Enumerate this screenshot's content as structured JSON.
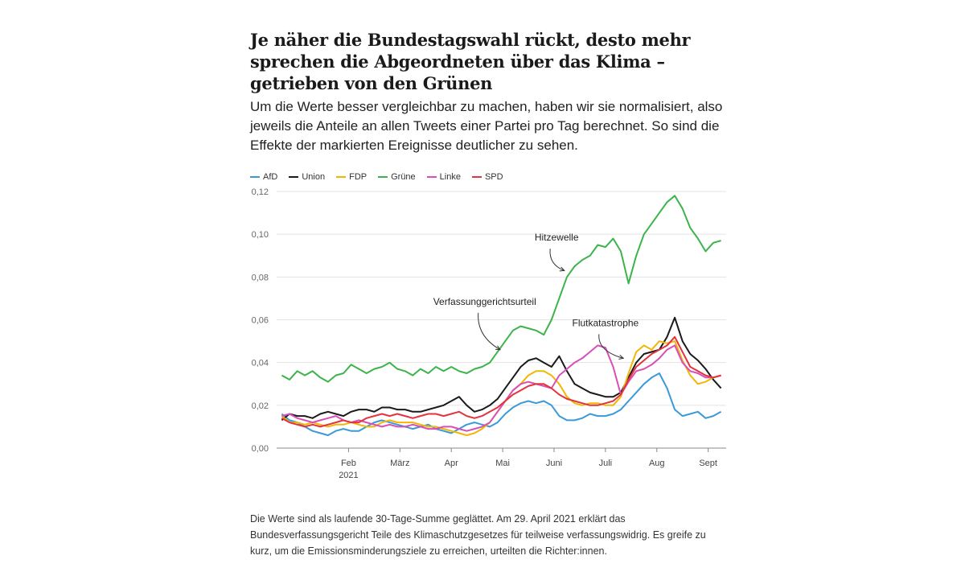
{
  "title": "Je näher die Bundestagswahl rückt, desto mehr sprechen die Abgeordneten über das Klima – getrieben von den Grünen",
  "subtitle": "Um die Werte besser vergleichbar zu machen, haben wir sie normalisiert, also jeweils die Anteile an allen Tweets einer Partei pro Tag berechnet. So sind die Effekte der markierten Ereignisse deutlicher zu sehen.",
  "note": "Die Werte sind als laufende 30-Tage-Summe geglättet. Am 29. April 2021 erklärt das Bundesverfassungsgericht Teile des Klimaschutzgesetzes für teilweise verfassungswidrig. Es greife zu kurz, um die Emissionsminderungsziele zu erreichen, urteilten die Richter:innen.",
  "chart_data": {
    "type": "line",
    "x_unit": "month of 2021",
    "xlim": [
      0.6,
      9.35
    ],
    "ylim": [
      0,
      0.12
    ],
    "y_ticks": [
      {
        "value": 0,
        "label": "0,00"
      },
      {
        "value": 0.02,
        "label": "0,02"
      },
      {
        "value": 0.04,
        "label": "0,04"
      },
      {
        "value": 0.06,
        "label": "0,06"
      },
      {
        "value": 0.08,
        "label": "0,08"
      },
      {
        "value": 0.1,
        "label": "0,10"
      },
      {
        "value": 0.12,
        "label": "0,12"
      }
    ],
    "x_ticks": [
      {
        "value": 2,
        "label": "Feb",
        "sublabel": "2021"
      },
      {
        "value": 3,
        "label": "März"
      },
      {
        "value": 4,
        "label": "Apr"
      },
      {
        "value": 5,
        "label": "Mai"
      },
      {
        "value": 6,
        "label": "Juni"
      },
      {
        "value": 7,
        "label": "Juli"
      },
      {
        "value": 8,
        "label": "Aug"
      },
      {
        "value": 9,
        "label": "Sept"
      }
    ],
    "grid": true,
    "legend_position": "top-left",
    "x": [
      0.7,
      0.85,
      1.0,
      1.15,
      1.3,
      1.45,
      1.6,
      1.75,
      1.9,
      2.05,
      2.2,
      2.35,
      2.5,
      2.65,
      2.8,
      2.95,
      3.1,
      3.25,
      3.4,
      3.55,
      3.7,
      3.85,
      4.0,
      4.15,
      4.3,
      4.45,
      4.6,
      4.75,
      4.9,
      5.05,
      5.2,
      5.35,
      5.5,
      5.65,
      5.8,
      5.95,
      6.1,
      6.25,
      6.4,
      6.55,
      6.7,
      6.85,
      7.0,
      7.15,
      7.3,
      7.45,
      7.6,
      7.75,
      7.9,
      8.05,
      8.2,
      8.35,
      8.5,
      8.65,
      8.8,
      8.95,
      9.1,
      9.25
    ],
    "series": [
      {
        "name": "AfD",
        "color": "#3a9ad9",
        "values": [
          0.016,
          0.013,
          0.012,
          0.01,
          0.008,
          0.007,
          0.006,
          0.008,
          0.009,
          0.008,
          0.008,
          0.01,
          0.012,
          0.013,
          0.012,
          0.011,
          0.01,
          0.009,
          0.01,
          0.011,
          0.009,
          0.008,
          0.007,
          0.009,
          0.011,
          0.012,
          0.011,
          0.01,
          0.012,
          0.016,
          0.019,
          0.021,
          0.022,
          0.021,
          0.022,
          0.02,
          0.015,
          0.013,
          0.013,
          0.014,
          0.016,
          0.015,
          0.015,
          0.016,
          0.018,
          0.022,
          0.026,
          0.03,
          0.033,
          0.035,
          0.028,
          0.018,
          0.015,
          0.016,
          0.017,
          0.014,
          0.015,
          0.017
        ]
      },
      {
        "name": "Union",
        "color": "#1a1a1a",
        "values": [
          0.013,
          0.016,
          0.015,
          0.015,
          0.014,
          0.016,
          0.017,
          0.016,
          0.015,
          0.017,
          0.018,
          0.018,
          0.017,
          0.019,
          0.019,
          0.018,
          0.018,
          0.017,
          0.017,
          0.018,
          0.019,
          0.02,
          0.022,
          0.024,
          0.02,
          0.017,
          0.018,
          0.02,
          0.023,
          0.028,
          0.033,
          0.038,
          0.041,
          0.042,
          0.04,
          0.038,
          0.043,
          0.036,
          0.03,
          0.028,
          0.026,
          0.025,
          0.024,
          0.024,
          0.026,
          0.033,
          0.04,
          0.044,
          0.045,
          0.046,
          0.052,
          0.061,
          0.05,
          0.044,
          0.041,
          0.037,
          0.032,
          0.028
        ]
      },
      {
        "name": "FDP",
        "color": "#f2b705",
        "values": [
          0.015,
          0.012,
          0.012,
          0.011,
          0.012,
          0.011,
          0.01,
          0.011,
          0.011,
          0.012,
          0.011,
          0.01,
          0.01,
          0.012,
          0.013,
          0.012,
          0.012,
          0.012,
          0.011,
          0.01,
          0.01,
          0.009,
          0.008,
          0.007,
          0.006,
          0.007,
          0.009,
          0.012,
          0.017,
          0.022,
          0.027,
          0.03,
          0.034,
          0.036,
          0.036,
          0.034,
          0.03,
          0.024,
          0.021,
          0.02,
          0.021,
          0.021,
          0.02,
          0.02,
          0.024,
          0.035,
          0.045,
          0.048,
          0.046,
          0.05,
          0.049,
          0.05,
          0.041,
          0.034,
          0.03,
          0.031,
          0.033,
          0.034
        ]
      },
      {
        "name": "Grüne",
        "color": "#3cb44b",
        "values": [
          0.034,
          0.032,
          0.036,
          0.034,
          0.036,
          0.033,
          0.031,
          0.034,
          0.035,
          0.039,
          0.037,
          0.035,
          0.037,
          0.038,
          0.04,
          0.037,
          0.036,
          0.034,
          0.037,
          0.035,
          0.038,
          0.036,
          0.038,
          0.036,
          0.035,
          0.037,
          0.038,
          0.04,
          0.045,
          0.05,
          0.055,
          0.057,
          0.056,
          0.055,
          0.053,
          0.06,
          0.07,
          0.08,
          0.085,
          0.088,
          0.09,
          0.095,
          0.094,
          0.098,
          0.092,
          0.077,
          0.09,
          0.1,
          0.105,
          0.11,
          0.115,
          0.118,
          0.112,
          0.103,
          0.098,
          0.092,
          0.096,
          0.097
        ]
      },
      {
        "name": "Linke",
        "color": "#d94fb8",
        "values": [
          0.015,
          0.016,
          0.014,
          0.013,
          0.012,
          0.013,
          0.014,
          0.015,
          0.013,
          0.012,
          0.013,
          0.012,
          0.011,
          0.01,
          0.011,
          0.01,
          0.01,
          0.011,
          0.01,
          0.009,
          0.009,
          0.01,
          0.01,
          0.009,
          0.008,
          0.009,
          0.01,
          0.012,
          0.017,
          0.022,
          0.027,
          0.03,
          0.031,
          0.03,
          0.029,
          0.028,
          0.034,
          0.037,
          0.04,
          0.042,
          0.045,
          0.048,
          0.047,
          0.038,
          0.025,
          0.031,
          0.036,
          0.037,
          0.039,
          0.042,
          0.046,
          0.048,
          0.04,
          0.036,
          0.035,
          0.033,
          0.033,
          0.034
        ]
      },
      {
        "name": "SPD",
        "color": "#e2343d",
        "values": [
          0.014,
          0.012,
          0.011,
          0.01,
          0.011,
          0.01,
          0.011,
          0.012,
          0.013,
          0.012,
          0.012,
          0.014,
          0.015,
          0.016,
          0.015,
          0.016,
          0.015,
          0.014,
          0.015,
          0.016,
          0.016,
          0.015,
          0.016,
          0.017,
          0.015,
          0.014,
          0.015,
          0.017,
          0.019,
          0.022,
          0.025,
          0.027,
          0.029,
          0.03,
          0.03,
          0.028,
          0.025,
          0.023,
          0.022,
          0.021,
          0.02,
          0.02,
          0.021,
          0.022,
          0.025,
          0.032,
          0.038,
          0.041,
          0.044,
          0.046,
          0.048,
          0.052,
          0.045,
          0.038,
          0.036,
          0.034,
          0.033,
          0.034
        ]
      }
    ],
    "annotations": [
      {
        "text": "Hitzewelle",
        "x": 6.05,
        "y": 0.097,
        "arrow_to": [
          6.2,
          0.083
        ]
      },
      {
        "text": "Verfassunggerichtsurteil",
        "x": 4.65,
        "y": 0.067,
        "arrow_to": [
          4.95,
          0.046
        ]
      },
      {
        "text": "Flutkatastrophe",
        "x": 7.0,
        "y": 0.057,
        "arrow_to": [
          7.35,
          0.042
        ]
      }
    ]
  }
}
